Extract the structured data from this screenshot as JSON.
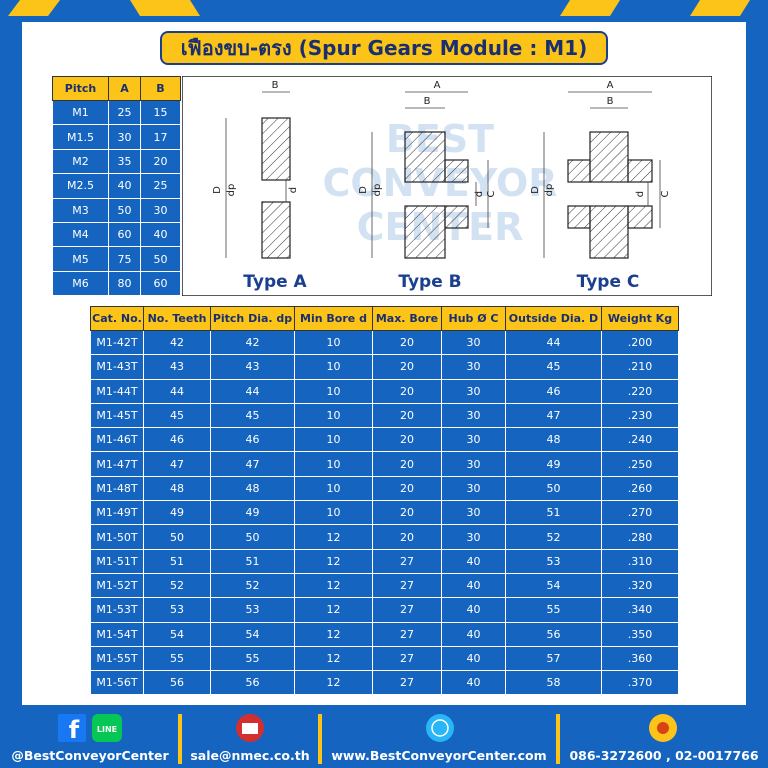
{
  "title": "เฟืองขบ-ตรง (Spur Gears Module : M1)",
  "pitch_table": {
    "header": [
      "Pitch",
      "A",
      "B"
    ],
    "rows": [
      [
        "M1",
        25,
        15
      ],
      [
        "M1.5",
        30,
        17
      ],
      [
        "M2",
        35,
        20
      ],
      [
        "M2.5",
        40,
        25
      ],
      [
        "M3",
        50,
        30
      ],
      [
        "M4",
        60,
        40
      ],
      [
        "M5",
        75,
        50
      ],
      [
        "M6",
        80,
        60
      ]
    ]
  },
  "diagram": {
    "watermark": [
      "BEST",
      "CONVEYOR",
      "CENTER"
    ],
    "types": [
      {
        "label": "Type A",
        "dims": [
          "B",
          "D",
          "dp",
          "d"
        ]
      },
      {
        "label": "Type B",
        "dims": [
          "A",
          "B",
          "D",
          "dp",
          "d",
          "C"
        ]
      },
      {
        "label": "Type C",
        "dims": [
          "A",
          "B",
          "D",
          "dp",
          "d",
          "C"
        ]
      }
    ]
  },
  "table": {
    "header": [
      "Cat. No.",
      "No. Teeth",
      "Pitch Dia. dp",
      "Min Bore d",
      "Max. Bore",
      "Hub Ø C",
      "Outside Dia. D",
      "Weight Kg"
    ],
    "rows": [
      [
        "M1-42T",
        42,
        42,
        10,
        20,
        30,
        44,
        ".200"
      ],
      [
        "M1-43T",
        43,
        43,
        10,
        20,
        30,
        45,
        ".210"
      ],
      [
        "M1-44T",
        44,
        44,
        10,
        20,
        30,
        46,
        ".220"
      ],
      [
        "M1-45T",
        45,
        45,
        10,
        20,
        30,
        47,
        ".230"
      ],
      [
        "M1-46T",
        46,
        46,
        10,
        20,
        30,
        48,
        ".240"
      ],
      [
        "M1-47T",
        47,
        47,
        10,
        20,
        30,
        49,
        ".250"
      ],
      [
        "M1-48T",
        48,
        48,
        10,
        20,
        30,
        50,
        ".260"
      ],
      [
        "M1-49T",
        49,
        49,
        10,
        20,
        30,
        51,
        ".270"
      ],
      [
        "M1-50T",
        50,
        50,
        12,
        20,
        30,
        52,
        ".280"
      ],
      [
        "M1-51T",
        51,
        51,
        12,
        27,
        40,
        53,
        ".310"
      ],
      [
        "M1-52T",
        52,
        52,
        12,
        27,
        40,
        54,
        ".320"
      ],
      [
        "M1-53T",
        53,
        53,
        12,
        27,
        40,
        55,
        ".340"
      ],
      [
        "M1-54T",
        54,
        54,
        12,
        27,
        40,
        56,
        ".350"
      ],
      [
        "M1-55T",
        55,
        55,
        12,
        27,
        40,
        57,
        ".360"
      ],
      [
        "M1-56T",
        56,
        56,
        12,
        27,
        40,
        58,
        ".370"
      ]
    ]
  },
  "footer": {
    "line_icon": "LINE",
    "facebook": "@BestConveyorCenter",
    "email": "sale@nmec.co.th",
    "website": "www.BestConveyorCenter.com",
    "phone": "086-3272600 , 02-0017766"
  }
}
